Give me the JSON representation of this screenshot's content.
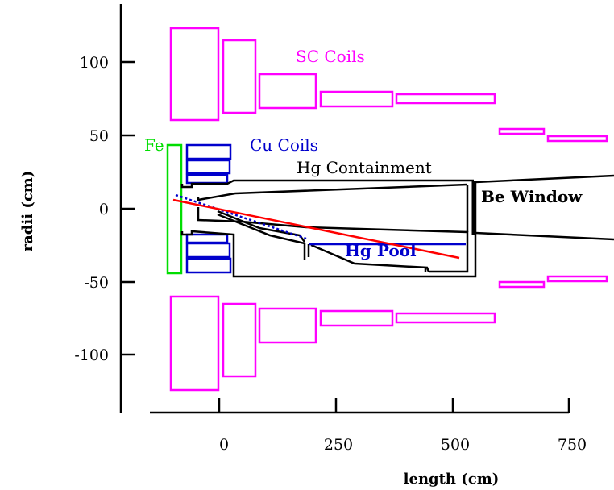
{
  "axes": {
    "y_title": "radii (cm)",
    "x_title": "length (cm)",
    "y_ticks": [
      "100",
      "50",
      "0",
      "-50",
      "-100"
    ],
    "x_ticks": [
      "0",
      "250",
      "500",
      "750"
    ]
  },
  "labels": {
    "sc_coils": "SC Coils",
    "cu_coils": "Cu Coils",
    "fe": "Fe",
    "hg_containment": "Hg Containment",
    "be_window": "Be Window",
    "hg_pool": "Hg Pool"
  },
  "colors": {
    "sc_coils": "#ff00ff",
    "cu_coils": "#0000cc",
    "fe": "#00dd00",
    "beam": "#ff0000",
    "hg_pool": "#0000cc",
    "structure": "#000000"
  }
}
